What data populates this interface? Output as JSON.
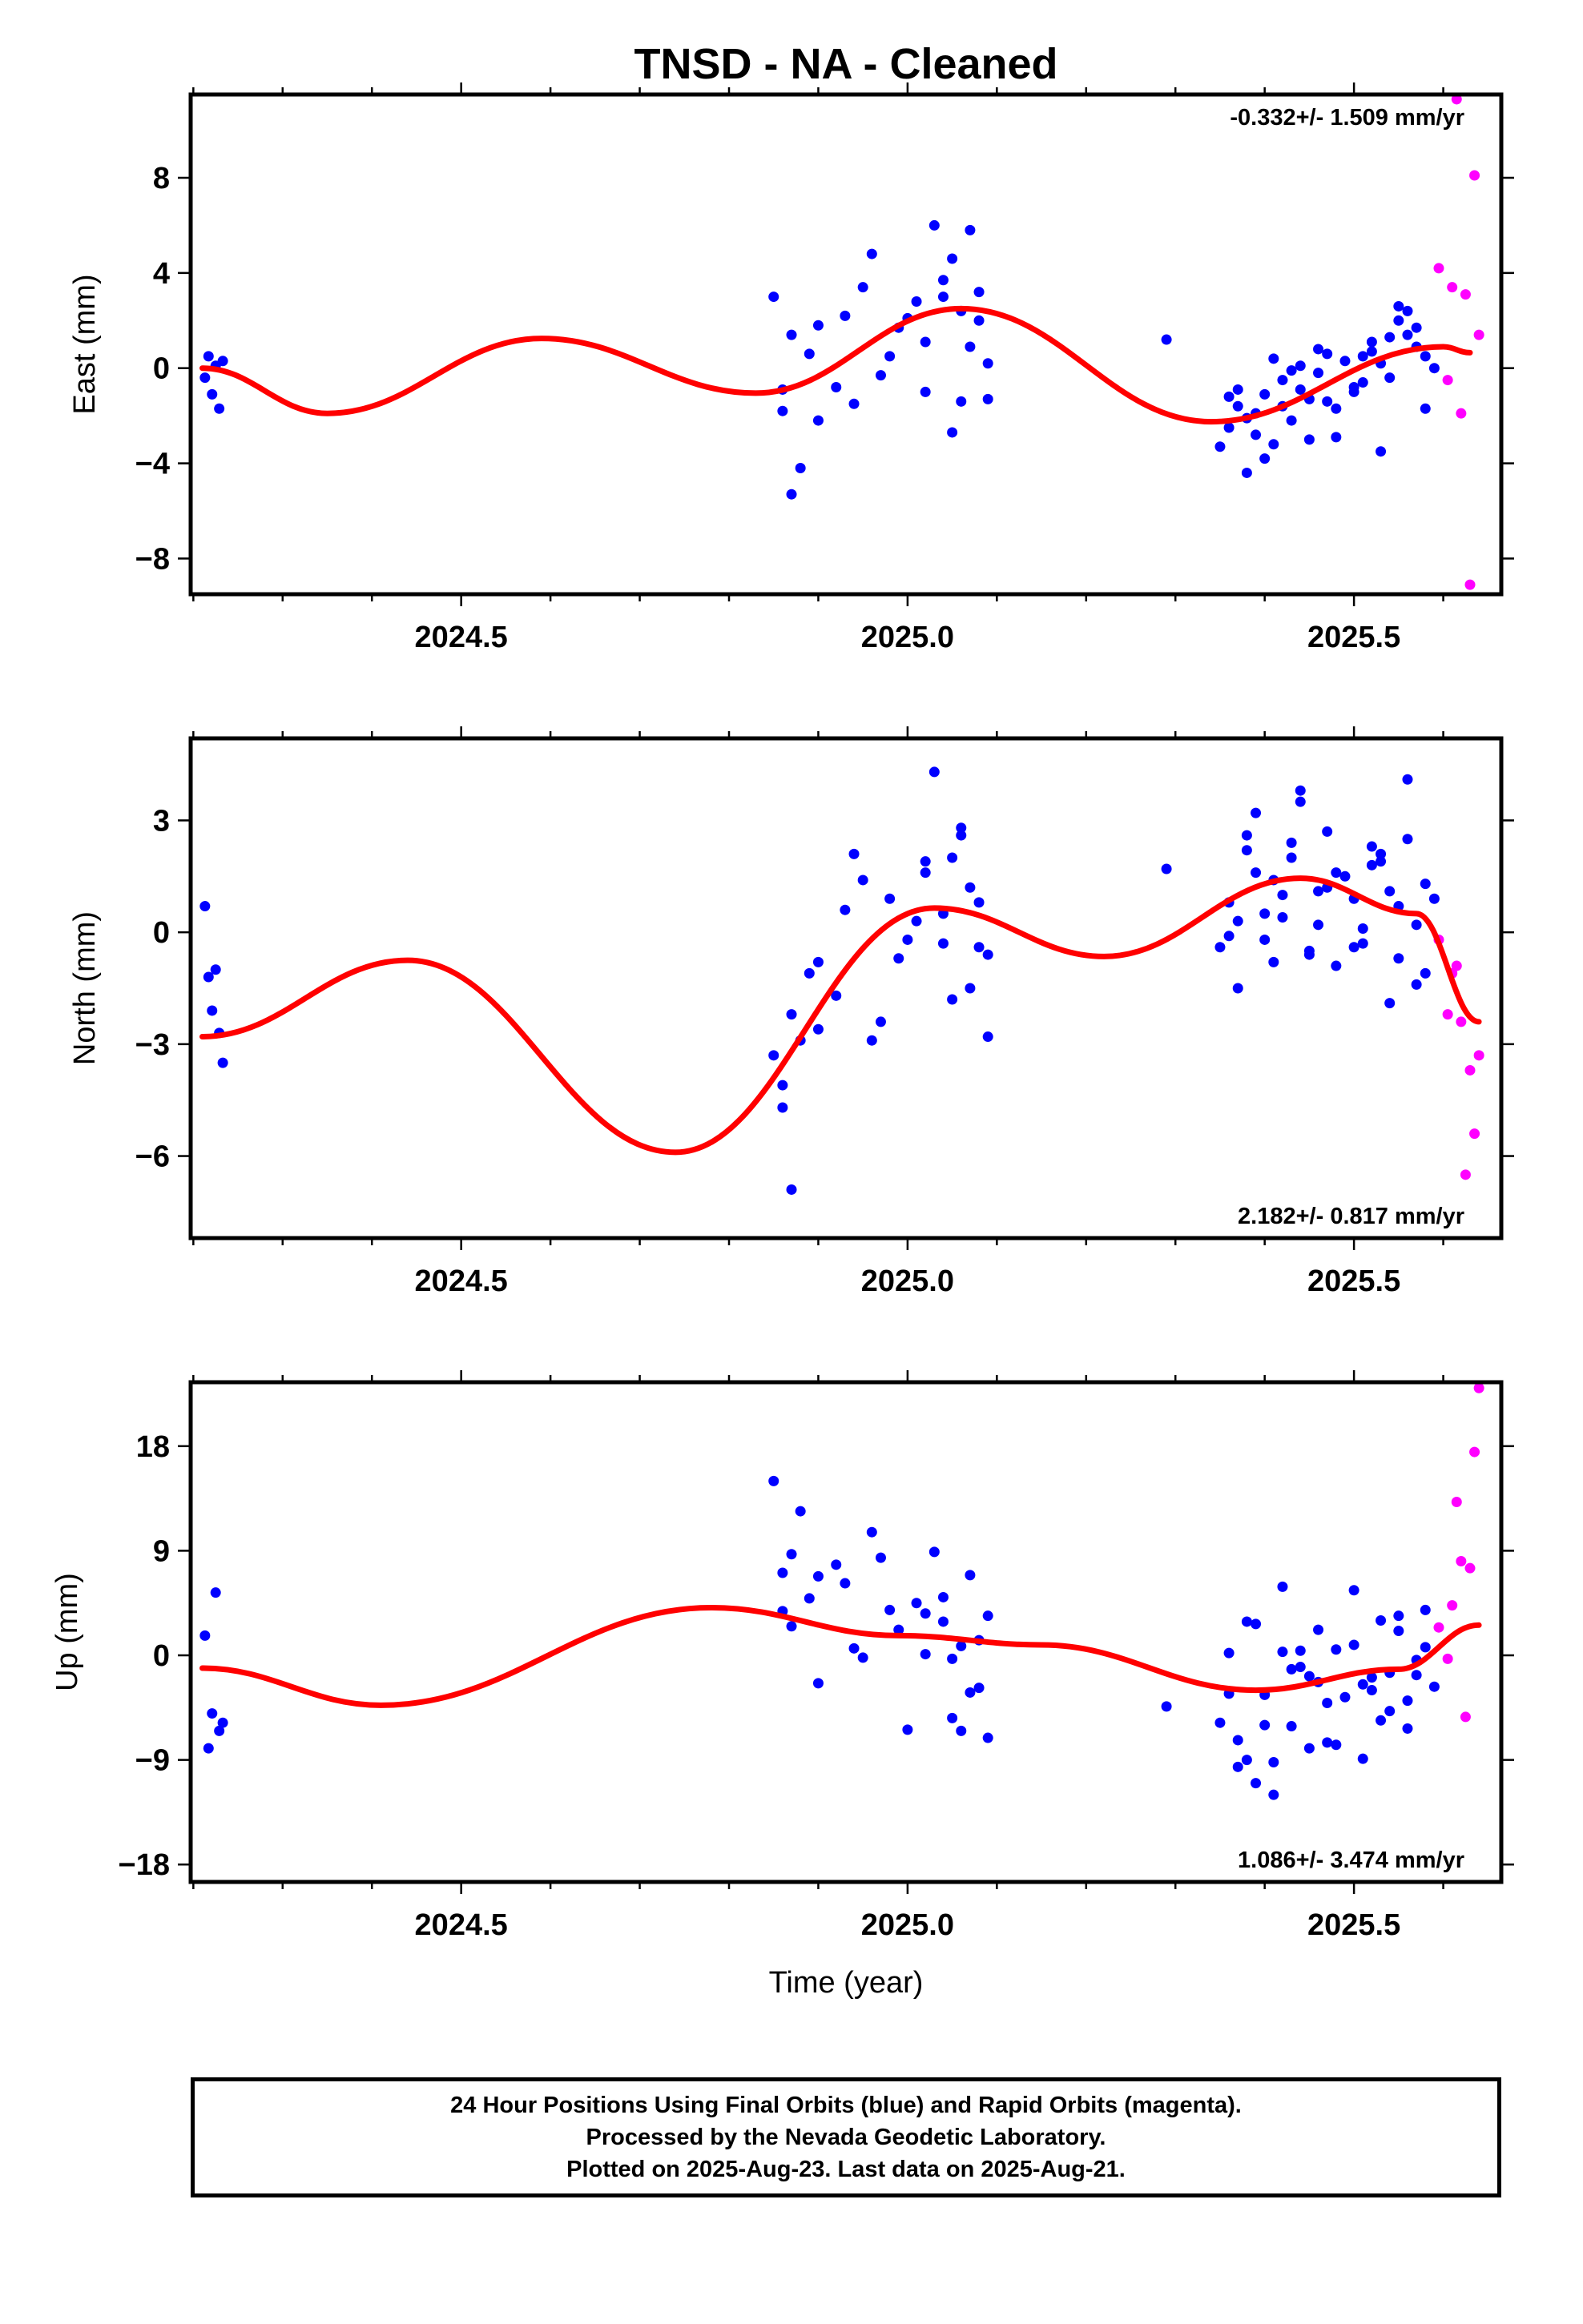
{
  "title": "TNSD  - NA - Cleaned",
  "footer": {
    "line1": "24 Hour Positions Using Final Orbits (blue) and Rapid Orbits (magenta).",
    "line2": "Processed by the Nevada Geodetic Laboratory.",
    "line3": "Plotted on 2025-Aug-23. Last data on 2025-Aug-21."
  },
  "colors": {
    "final": "#0000ff",
    "rapid": "#ff00ff",
    "model": "#ff0000"
  },
  "chart_data": [
    {
      "type": "scatter",
      "ylabel": "East (mm)",
      "rate_text": "-0.332+/- 1.509 mm/yr",
      "rate_position": "top-right",
      "xlim": [
        2024.197,
        2025.665
      ],
      "ylim": [
        -9.5,
        11.5
      ],
      "yticks": [
        -8,
        -4,
        0,
        4,
        8
      ],
      "ytick_labels": [
        "−8",
        "−4",
        "0",
        "4",
        "8"
      ],
      "xticks": [
        2024.5,
        2025.0,
        2025.5
      ],
      "xtick_labels": [
        "2024.5",
        "2025.0",
        "2025.5"
      ],
      "model": {
        "x": [
          2024.21,
          2024.35,
          2024.59,
          2024.83,
          2025.06,
          2025.34,
          2025.6,
          2025.63
        ],
        "y": [
          0,
          -1.9,
          1.25,
          -1.05,
          2.5,
          -2.25,
          0.9,
          0.65
        ]
      },
      "final": {
        "x": [
          2024.213,
          2024.217,
          2024.221,
          2024.225,
          2024.229,
          2024.233,
          2024.85,
          2024.86,
          2024.87,
          2024.88,
          2024.9,
          2024.92,
          2024.94,
          2024.96,
          2024.98,
          2025.0,
          2025.02,
          2025.03,
          2025.04,
          2025.05,
          2025.06,
          2025.07,
          2025.08,
          2025.09,
          2024.87,
          2024.89,
          2024.95,
          2024.99,
          2025.01,
          2025.05,
          2025.07,
          2025.08,
          2024.93,
          2024.97,
          2025.02,
          2025.04,
          2025.06,
          2025.09,
          2024.86,
          2024.9,
          2025.29,
          2025.35,
          2025.36,
          2025.37,
          2025.38,
          2025.39,
          2025.4,
          2025.41,
          2025.42,
          2025.43,
          2025.44,
          2025.45,
          2025.46,
          2025.47,
          2025.48,
          2025.49,
          2025.5,
          2025.51,
          2025.52,
          2025.53,
          2025.54,
          2025.55,
          2025.56,
          2025.57,
          2025.58,
          2025.59,
          2025.37,
          2025.39,
          2025.41,
          2025.43,
          2025.45,
          2025.47,
          2025.51,
          2025.53,
          2025.55,
          2025.57,
          2025.36,
          2025.38,
          2025.4,
          2025.42,
          2025.44,
          2025.46,
          2025.48,
          2025.5,
          2025.52,
          2025.54,
          2025.56,
          2025.58
        ],
        "y": [
          -0.4,
          0.5,
          -1.1,
          0.1,
          -1.7,
          0.3,
          3.0,
          -1.8,
          -5.3,
          -4.2,
          -2.2,
          -0.8,
          -1.5,
          4.8,
          0.5,
          2.1,
          -1.0,
          6.0,
          3.0,
          -2.7,
          2.4,
          5.8,
          3.2,
          -1.3,
          1.4,
          0.6,
          3.4,
          1.7,
          2.8,
          4.6,
          0.9,
          2.0,
          2.2,
          -0.3,
          1.1,
          3.7,
          -1.4,
          0.2,
          -0.9,
          1.8,
          1.2,
          -3.3,
          -2.5,
          -1.6,
          -4.4,
          -1.9,
          -1.1,
          -3.2,
          -0.5,
          -2.2,
          0.1,
          -1.3,
          -0.2,
          0.6,
          -1.7,
          0.3,
          -0.8,
          0.5,
          1.1,
          -3.5,
          -0.4,
          2.0,
          1.4,
          0.9,
          -1.7,
          0.0,
          -0.9,
          -2.8,
          0.4,
          -0.1,
          -3.0,
          -1.4,
          -0.6,
          0.2,
          2.6,
          1.7,
          -1.2,
          -2.1,
          -3.8,
          -1.6,
          -0.9,
          0.8,
          -2.9,
          -1.0,
          0.7,
          1.3,
          2.4,
          0.5
        ]
      },
      "rapid": {
        "x": [
          2025.595,
          2025.605,
          2025.61,
          2025.615,
          2025.62,
          2025.625,
          2025.63,
          2025.635,
          2025.64
        ],
        "y": [
          4.2,
          -0.5,
          3.4,
          11.3,
          -1.9,
          3.1,
          -9.1,
          8.1,
          1.4
        ]
      }
    },
    {
      "type": "scatter",
      "ylabel": "North (mm)",
      "rate_text": "2.182+/- 0.817 mm/yr",
      "rate_position": "bottom-right",
      "xlim": [
        2024.197,
        2025.665
      ],
      "ylim": [
        -8.2,
        5.2
      ],
      "yticks": [
        -6,
        -3,
        0,
        3
      ],
      "ytick_labels": [
        "−6",
        "−3",
        "0",
        "3"
      ],
      "xticks": [
        2024.5,
        2025.0,
        2025.5
      ],
      "xtick_labels": [
        "2024.5",
        "2025.0",
        "2025.5"
      ],
      "model": {
        "x": [
          2024.21,
          2024.44,
          2024.74,
          2025.03,
          2025.22,
          2025.44,
          2025.57,
          2025.64
        ],
        "y": [
          -2.8,
          -0.75,
          -5.9,
          0.65,
          -0.65,
          1.45,
          0.5,
          -2.4
        ]
      },
      "final": {
        "x": [
          2024.213,
          2024.217,
          2024.221,
          2024.225,
          2024.229,
          2024.233,
          2024.85,
          2024.86,
          2024.87,
          2024.88,
          2024.9,
          2024.92,
          2024.94,
          2024.96,
          2024.98,
          2025.0,
          2025.02,
          2025.03,
          2025.04,
          2025.05,
          2025.06,
          2025.07,
          2025.08,
          2025.09,
          2024.87,
          2024.89,
          2024.95,
          2024.99,
          2025.01,
          2025.05,
          2025.07,
          2025.08,
          2024.93,
          2024.97,
          2025.02,
          2025.04,
          2025.06,
          2025.09,
          2024.86,
          2024.9,
          2025.29,
          2025.35,
          2025.36,
          2025.37,
          2025.38,
          2025.39,
          2025.4,
          2025.41,
          2025.42,
          2025.43,
          2025.44,
          2025.45,
          2025.46,
          2025.47,
          2025.48,
          2025.49,
          2025.5,
          2025.51,
          2025.52,
          2025.53,
          2025.54,
          2025.55,
          2025.56,
          2025.57,
          2025.58,
          2025.59,
          2025.37,
          2025.39,
          2025.41,
          2025.43,
          2025.45,
          2025.47,
          2025.51,
          2025.53,
          2025.55,
          2025.57,
          2025.36,
          2025.38,
          2025.4,
          2025.42,
          2025.44,
          2025.46,
          2025.48,
          2025.5,
          2025.52,
          2025.54,
          2025.56,
          2025.58
        ],
        "y": [
          0.7,
          -1.2,
          -2.1,
          -1.0,
          -2.7,
          -3.5,
          -3.3,
          -4.1,
          -6.9,
          -2.9,
          -0.8,
          -1.7,
          2.1,
          -2.9,
          0.9,
          -0.2,
          1.6,
          4.3,
          0.5,
          -1.8,
          2.6,
          1.2,
          -0.4,
          -2.8,
          -2.2,
          -1.1,
          1.4,
          -0.7,
          0.3,
          2.0,
          -1.5,
          0.8,
          0.6,
          -2.4,
          1.9,
          -0.3,
          2.8,
          -0.6,
          -4.7,
          -2.6,
          1.7,
          -0.4,
          0.8,
          -1.5,
          2.2,
          3.2,
          -0.2,
          1.4,
          0.4,
          2.0,
          3.8,
          -0.6,
          1.1,
          2.7,
          -0.9,
          1.5,
          0.9,
          -0.3,
          1.8,
          2.1,
          -1.9,
          0.7,
          4.1,
          0.2,
          -1.1,
          0.9,
          0.3,
          1.6,
          -0.8,
          2.4,
          -0.5,
          1.2,
          0.1,
          1.9,
          -0.7,
          -1.4,
          -0.1,
          2.6,
          0.5,
          1.0,
          3.5,
          0.2,
          1.6,
          -0.4,
          2.3,
          1.1,
          2.5,
          1.3
        ]
      },
      "rapid": {
        "x": [
          2025.595,
          2025.605,
          2025.61,
          2025.615,
          2025.62,
          2025.625,
          2025.63,
          2025.635,
          2025.64
        ],
        "y": [
          -0.2,
          -2.2,
          -1.1,
          -0.9,
          -2.4,
          -6.5,
          -3.7,
          -5.4,
          -3.3
        ]
      }
    },
    {
      "type": "scatter",
      "ylabel": "Up (mm)",
      "xlabel": "Time (year)",
      "rate_text": "1.086+/- 3.474 mm/yr",
      "rate_position": "bottom-right",
      "xlim": [
        2024.197,
        2025.665
      ],
      "ylim": [
        -19.5,
        23.5
      ],
      "yticks": [
        -18,
        -9,
        0,
        9,
        18
      ],
      "ytick_labels": [
        "−18",
        "−9",
        "0",
        "9",
        "18"
      ],
      "xticks": [
        2024.5,
        2025.0,
        2025.5
      ],
      "xtick_labels": [
        "2024.5",
        "2025.0",
        "2025.5"
      ],
      "model": {
        "x": [
          2024.21,
          2024.41,
          2024.78,
          2024.99,
          2025.15,
          2025.39,
          2025.55,
          2025.64
        ],
        "y": [
          -1.1,
          -4.3,
          4.1,
          1.7,
          0.9,
          -3.0,
          -1.2,
          2.6
        ]
      },
      "final": {
        "x": [
          2024.213,
          2024.217,
          2024.221,
          2024.225,
          2024.229,
          2024.233,
          2024.85,
          2024.86,
          2024.87,
          2024.88,
          2024.9,
          2024.92,
          2024.94,
          2024.96,
          2024.98,
          2025.0,
          2025.02,
          2025.03,
          2025.04,
          2025.05,
          2025.06,
          2025.07,
          2025.08,
          2025.09,
          2024.87,
          2024.89,
          2024.95,
          2024.99,
          2025.01,
          2025.05,
          2025.07,
          2025.08,
          2024.93,
          2024.97,
          2025.02,
          2025.04,
          2025.06,
          2025.09,
          2024.86,
          2024.9,
          2025.29,
          2025.35,
          2025.36,
          2025.37,
          2025.38,
          2025.39,
          2025.4,
          2025.41,
          2025.42,
          2025.43,
          2025.44,
          2025.45,
          2025.46,
          2025.47,
          2025.48,
          2025.49,
          2025.5,
          2025.51,
          2025.52,
          2025.53,
          2025.54,
          2025.55,
          2025.56,
          2025.57,
          2025.58,
          2025.59,
          2025.37,
          2025.39,
          2025.41,
          2025.43,
          2025.45,
          2025.47,
          2025.51,
          2025.53,
          2025.55,
          2025.57,
          2025.36,
          2025.38,
          2025.4,
          2025.42,
          2025.44,
          2025.46,
          2025.48,
          2025.5,
          2025.52,
          2025.54,
          2025.56,
          2025.58
        ],
        "y": [
          1.7,
          -8.0,
          -5.0,
          5.4,
          -6.5,
          -5.8,
          15.0,
          3.8,
          8.7,
          12.4,
          6.8,
          7.8,
          0.6,
          10.6,
          3.9,
          -6.4,
          3.6,
          8.9,
          2.9,
          -5.4,
          0.8,
          6.9,
          -2.8,
          3.4,
          2.5,
          4.9,
          -0.2,
          2.2,
          4.5,
          -0.3,
          -3.2,
          1.3,
          6.2,
          8.4,
          0.1,
          5.0,
          -6.5,
          -7.1,
          7.1,
          -2.4,
          -4.4,
          -5.8,
          0.2,
          -9.6,
          2.9,
          -11.0,
          -3.4,
          -9.2,
          5.9,
          -6.1,
          0.4,
          -1.8,
          -2.3,
          -7.5,
          0.5,
          -3.6,
          5.6,
          -8.9,
          -1.9,
          3.0,
          -4.8,
          2.1,
          -6.3,
          -0.4,
          3.9,
          -2.7,
          -7.3,
          2.7,
          -12.0,
          -1.2,
          -8.0,
          -4.1,
          -2.5,
          -5.6,
          3.4,
          -1.7,
          -3.3,
          -9.0,
          -6.0,
          0.3,
          -1.0,
          2.2,
          -7.7,
          0.9,
          -3.0,
          -1.5,
          -3.9,
          0.7
        ]
      },
      "rapid": {
        "x": [
          2025.595,
          2025.605,
          2025.61,
          2025.615,
          2025.62,
          2025.625,
          2025.63,
          2025.635,
          2025.64
        ],
        "y": [
          2.4,
          -0.3,
          4.3,
          13.2,
          8.1,
          -5.3,
          7.5,
          17.5,
          23.0
        ]
      }
    }
  ]
}
